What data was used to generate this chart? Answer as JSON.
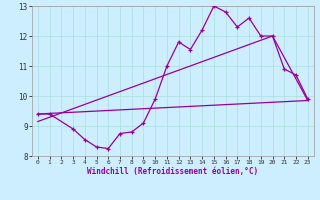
{
  "title": "",
  "xlabel": "Windchill (Refroidissement éolien,°C)",
  "bg_color": "#cceeff",
  "line_color": "#990099",
  "xlim": [
    -0.5,
    23.5
  ],
  "ylim": [
    8,
    13
  ],
  "xticks": [
    0,
    1,
    2,
    3,
    4,
    5,
    6,
    7,
    8,
    9,
    10,
    11,
    12,
    13,
    14,
    15,
    16,
    17,
    18,
    19,
    20,
    21,
    22,
    23
  ],
  "yticks": [
    8,
    9,
    10,
    11,
    12,
    13
  ],
  "grid_color": "#aadddd",
  "series1_x": [
    0,
    1,
    3,
    4,
    5,
    6,
    7,
    8,
    9,
    10,
    11,
    12,
    13,
    14,
    15,
    16,
    17,
    18,
    19,
    20,
    21,
    22,
    23
  ],
  "series1_y": [
    9.4,
    9.4,
    8.9,
    8.55,
    8.3,
    8.25,
    8.75,
    8.8,
    9.1,
    9.9,
    11.0,
    11.8,
    11.55,
    12.2,
    13.0,
    12.8,
    12.3,
    12.6,
    12.0,
    12.0,
    10.9,
    10.7,
    9.9
  ],
  "trend1_x": [
    0,
    23
  ],
  "trend1_y": [
    9.4,
    9.85
  ],
  "trend2_x": [
    0,
    20,
    23
  ],
  "trend2_y": [
    9.15,
    12.0,
    9.85
  ],
  "lw": 0.9,
  "marker_size": 3
}
